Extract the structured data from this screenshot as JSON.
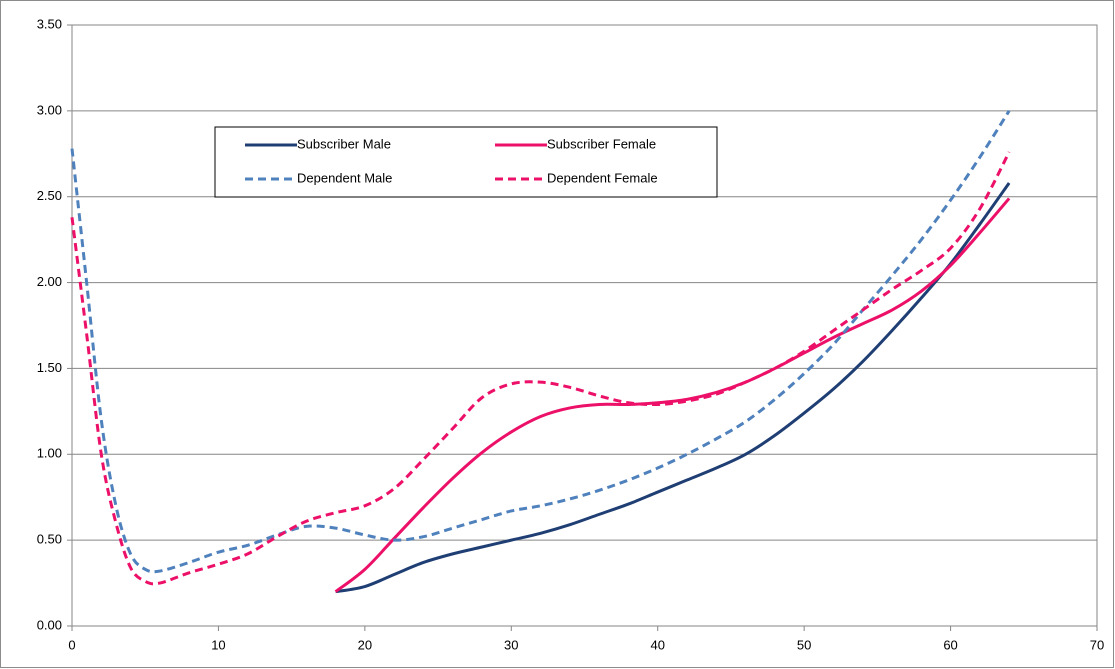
{
  "chart_data": {
    "type": "line",
    "xlim": [
      0,
      70
    ],
    "xticks": [
      0,
      10,
      20,
      30,
      40,
      50,
      60,
      70
    ],
    "ylim": [
      0,
      3.5
    ],
    "yticks": [
      {
        "value": 0,
        "label": "0.00"
      },
      {
        "value": 0.5,
        "label": "0.50"
      },
      {
        "value": 1,
        "label": "1.00"
      },
      {
        "value": 1.5,
        "label": "1.50"
      },
      {
        "value": 2,
        "label": "2.00"
      },
      {
        "value": 2.5,
        "label": "2.50"
      },
      {
        "value": 3,
        "label": "3.00"
      },
      {
        "value": 3.5,
        "label": "3.50"
      }
    ],
    "grid": true,
    "series": [
      {
        "name": "Subscriber Male",
        "color": "#1f3f74",
        "dash": false,
        "x": [
          18,
          20,
          22,
          24,
          26,
          28,
          30,
          32,
          34,
          36,
          38,
          40,
          42,
          44,
          46,
          48,
          50,
          52,
          54,
          56,
          58,
          60,
          62,
          64
        ],
        "values": [
          0.2,
          0.23,
          0.3,
          0.37,
          0.42,
          0.46,
          0.5,
          0.54,
          0.59,
          0.65,
          0.71,
          0.78,
          0.85,
          0.92,
          1.0,
          1.11,
          1.24,
          1.38,
          1.54,
          1.72,
          1.91,
          2.11,
          2.34,
          2.58
        ]
      },
      {
        "name": "Subscriber Female",
        "color": "#ec1068",
        "dash": false,
        "x": [
          18,
          20,
          22,
          24,
          26,
          28,
          30,
          32,
          34,
          36,
          38,
          40,
          42,
          44,
          46,
          48,
          50,
          52,
          54,
          56,
          58,
          60,
          62,
          64
        ],
        "values": [
          0.2,
          0.33,
          0.51,
          0.69,
          0.86,
          1.01,
          1.13,
          1.22,
          1.27,
          1.29,
          1.29,
          1.3,
          1.32,
          1.36,
          1.42,
          1.5,
          1.59,
          1.68,
          1.76,
          1.84,
          1.95,
          2.1,
          2.29,
          2.49
        ]
      },
      {
        "name": "Dependent Male",
        "color": "#4f81bd",
        "dash": true,
        "x": [
          0,
          1,
          2,
          3,
          4,
          5,
          6,
          8,
          10,
          12,
          14,
          16,
          18,
          20,
          22,
          24,
          26,
          28,
          30,
          32,
          34,
          36,
          38,
          40,
          42,
          44,
          46,
          48,
          50,
          52,
          54,
          56,
          58,
          60,
          62,
          64
        ],
        "values": [
          2.78,
          2.0,
          1.2,
          0.7,
          0.42,
          0.33,
          0.32,
          0.37,
          0.43,
          0.47,
          0.53,
          0.58,
          0.57,
          0.53,
          0.5,
          0.52,
          0.57,
          0.62,
          0.67,
          0.7,
          0.74,
          0.79,
          0.85,
          0.92,
          1.0,
          1.09,
          1.19,
          1.32,
          1.47,
          1.64,
          1.84,
          2.04,
          2.25,
          2.48,
          2.73,
          3.0
        ]
      },
      {
        "name": "Dependent Female",
        "color": "#ec1068",
        "dash": true,
        "x": [
          0,
          1,
          2,
          3,
          4,
          5,
          6,
          8,
          10,
          12,
          14,
          16,
          18,
          20,
          22,
          24,
          26,
          28,
          30,
          32,
          34,
          36,
          38,
          40,
          42,
          44,
          46,
          48,
          50,
          52,
          54,
          56,
          58,
          60,
          62,
          64
        ],
        "values": [
          2.38,
          1.7,
          1.0,
          0.6,
          0.34,
          0.26,
          0.25,
          0.31,
          0.36,
          0.42,
          0.52,
          0.61,
          0.66,
          0.7,
          0.8,
          0.97,
          1.15,
          1.33,
          1.41,
          1.42,
          1.39,
          1.34,
          1.3,
          1.29,
          1.31,
          1.35,
          1.42,
          1.5,
          1.6,
          1.72,
          1.84,
          1.96,
          2.07,
          2.2,
          2.43,
          2.76
        ]
      }
    ]
  }
}
